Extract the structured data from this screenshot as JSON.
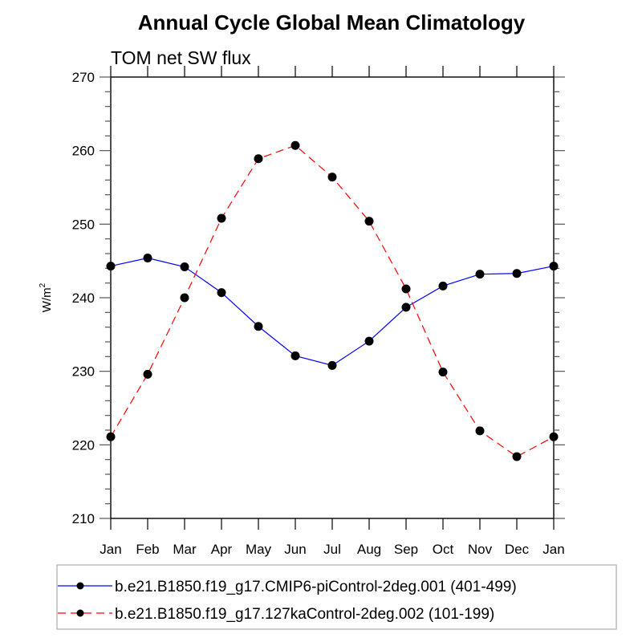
{
  "chart_data": {
    "type": "line",
    "title": "Annual Cycle Global Mean Climatology",
    "subtitle": "TOM net SW flux",
    "xlabel": "",
    "ylabel": "W/m",
    "ylabel_superscript": "2",
    "categories": [
      "Jan",
      "Feb",
      "Mar",
      "Apr",
      "May",
      "Jun",
      "Jul",
      "Aug",
      "Sep",
      "Oct",
      "Nov",
      "Dec",
      "Jan"
    ],
    "ylim": [
      210,
      270
    ],
    "yticks": [
      210,
      220,
      230,
      240,
      250,
      260,
      270
    ],
    "y_minor_step": 2,
    "grid": false,
    "legend_position": "bottom",
    "series": [
      {
        "name": "b.e21.B1850.f19_g17.CMIP6-piControl-2deg.001 (401-499)",
        "color": "#0000ff",
        "line_style": "solid",
        "marker": "filled-circle",
        "marker_color": "#000000",
        "values": [
          244.3,
          245.4,
          244.2,
          240.7,
          236.1,
          232.1,
          230.8,
          234.1,
          238.7,
          241.6,
          243.2,
          243.3,
          244.3
        ]
      },
      {
        "name": "b.e21.B1850.f19_g17.127kaControl-2deg.002 (101-199)",
        "color": "#ff0000",
        "line_style": "dashed",
        "marker": "filled-circle",
        "marker_color": "#000000",
        "values": [
          221.1,
          229.6,
          240.0,
          250.8,
          258.9,
          260.7,
          256.4,
          250.4,
          241.2,
          229.9,
          221.9,
          218.4,
          221.1
        ]
      }
    ]
  }
}
